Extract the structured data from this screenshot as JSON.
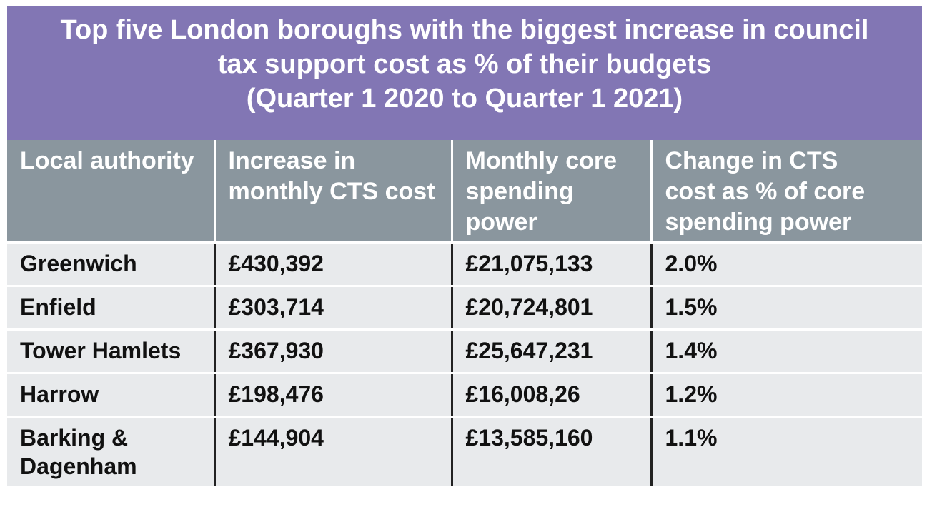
{
  "chart_data": {
    "type": "table",
    "title_lines": [
      "Top five London boroughs with the biggest increase in council",
      "tax support cost as % of their budgets",
      "(Quarter 1 2020 to Quarter 1 2021)"
    ],
    "columns": [
      [
        "Local authority"
      ],
      [
        "Increase in",
        "monthly CTS cost"
      ],
      [
        "Monthly core",
        "spending",
        "power"
      ],
      [
        "Change in CTS",
        "cost as % of core",
        "spending power"
      ]
    ],
    "rows": [
      {
        "authority": [
          "Greenwich"
        ],
        "increase": "£430,392",
        "spending": "£21,075,133",
        "change": "2.0%"
      },
      {
        "authority": [
          "Enfield"
        ],
        "increase": "£303,714",
        "spending": "£20,724,801",
        "change": "1.5%"
      },
      {
        "authority": [
          "Tower Hamlets"
        ],
        "increase": "£367,930",
        "spending": "£25,647,231",
        "change": "1.4%"
      },
      {
        "authority": [
          "Harrow"
        ],
        "increase": "£198,476",
        "spending": "£16,008,26",
        "change": "1.2%"
      },
      {
        "authority": [
          "Barking &",
          "Dagenham"
        ],
        "increase": "£144,904",
        "spending": "£13,585,160",
        "change": "1.1%"
      }
    ]
  },
  "colors": {
    "title_background": "#8276b4",
    "header_background": "#8a969e",
    "cell_background": "#e8eaec"
  }
}
